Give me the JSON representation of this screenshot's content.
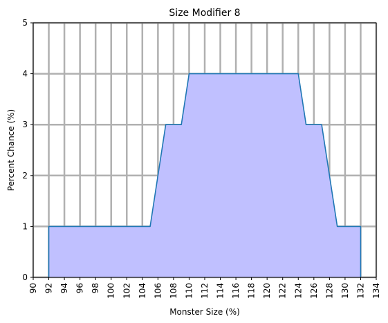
{
  "chart_data": {
    "type": "area",
    "title": "Size Modifier 8",
    "xlabel": "Monster Size (%)",
    "ylabel": "Percent Chance (%)",
    "xlim": [
      90,
      134
    ],
    "ylim": [
      0,
      5
    ],
    "xticks": [
      90,
      92,
      94,
      96,
      98,
      100,
      102,
      104,
      106,
      108,
      110,
      112,
      114,
      116,
      118,
      120,
      122,
      124,
      126,
      128,
      130,
      132,
      134
    ],
    "yticks": [
      0,
      1,
      2,
      3,
      4,
      5
    ],
    "grid": true,
    "series": [
      {
        "x": [
          92,
          92,
          105,
          107,
          109,
          110,
          124,
          125,
          127,
          129,
          132,
          132
        ],
        "y": [
          0,
          1,
          1,
          3,
          3,
          4,
          4,
          3,
          3,
          1,
          1,
          0
        ]
      }
    ],
    "colors": {
      "fill": "#c0c0ff",
      "line": "#1f77b4",
      "grid": "#b0b0b0",
      "axis": "#000000"
    }
  }
}
